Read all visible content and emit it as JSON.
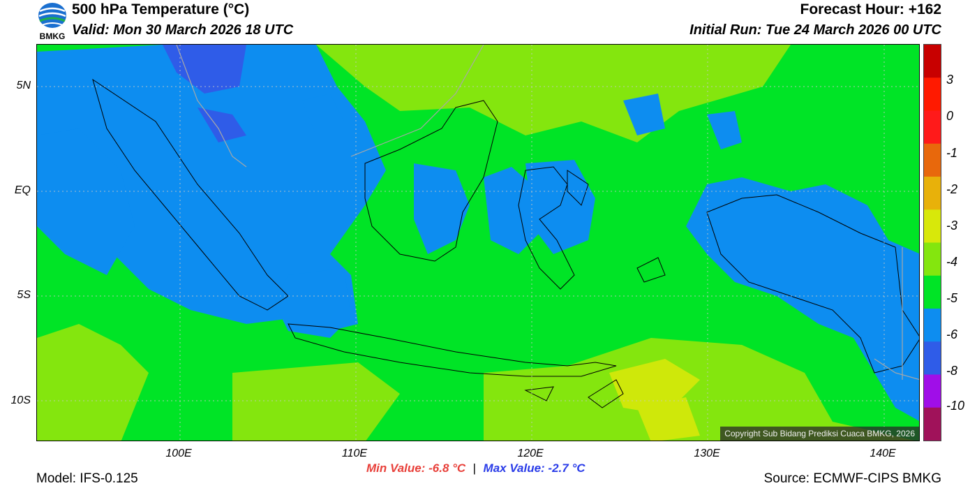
{
  "header": {
    "title": "500 hPa Temperature (°C)",
    "valid": "Valid: Mon 30 March 2026 18 UTC",
    "forecast_hour": "Forecast Hour: +162",
    "initial_run": "Initial Run: Tue 24 March 2026 00 UTC",
    "logo_text": "BMKG"
  },
  "map": {
    "lat_labels": [
      "5N",
      "EQ",
      "5S",
      "10S"
    ],
    "lon_labels": [
      "100E",
      "110E",
      "120E",
      "130E",
      "140E"
    ],
    "copyright": "Copyright Sub Bidang Prediksi Cuaca BMKG, 2026",
    "fill_colors": {
      "minus6_to_minus5": "#0d8df0",
      "minus5_to_minus4": "#00e426",
      "minus4_to_minus3": "#84e60e",
      "minus3_to_minus2": "#cfe80a",
      "minus8_to_minus6": "#2f5ce8"
    }
  },
  "colorbar": {
    "labels": [
      "3",
      "0",
      "-1",
      "-2",
      "-3",
      "-4",
      "-5",
      "-6",
      "-8",
      "-10"
    ],
    "colors": [
      "#c80000",
      "#ff1a00",
      "#ff1a1a",
      "#e8680c",
      "#e8b10a",
      "#d8e80a",
      "#84e60e",
      "#00e426",
      "#0d8df0",
      "#2f5ce8",
      "#a00ee8",
      "#a0125a"
    ]
  },
  "footer": {
    "model": "Model: IFS-0.125",
    "min_value": "Min Value: -6.8 °C",
    "separator": "|",
    "max_value": "Max Value: -2.7 °C",
    "source": "Source: ECMWF-CIPS BMKG"
  }
}
